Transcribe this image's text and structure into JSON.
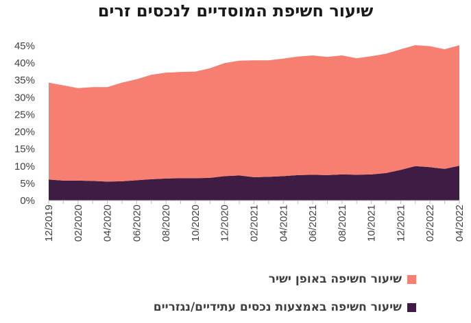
{
  "chart_data": {
    "type": "area",
    "stacked": true,
    "title": "שיעור חשיפת המוסדיים לנכסים זרים",
    "xlabel": "",
    "ylabel": "",
    "ylim": [
      0,
      0.45
    ],
    "yticks": [
      "0%",
      "5%",
      "10%",
      "15%",
      "20%",
      "25%",
      "30%",
      "35%",
      "40%",
      "45%"
    ],
    "grid": false,
    "legend_position": "bottom",
    "x": [
      "12/2019",
      "01/2020",
      "02/2020",
      "03/2020",
      "04/2020",
      "05/2020",
      "06/2020",
      "07/2020",
      "08/2020",
      "09/2020",
      "10/2020",
      "11/2020",
      "12/2020",
      "01/2021",
      "02/2021",
      "03/2021",
      "04/2021",
      "05/2021",
      "06/2021",
      "07/2021",
      "08/2021",
      "09/2021",
      "10/2021",
      "11/2021",
      "12/2021",
      "01/2022",
      "02/2022",
      "03/2022",
      "04/2022"
    ],
    "xtick_labels": [
      "12/2019",
      "02/2020",
      "04/2020",
      "06/2020",
      "08/2020",
      "10/2020",
      "12/2020",
      "02/2021",
      "04/2021",
      "06/2021",
      "08/2021",
      "10/2021",
      "12/2021",
      "02/2022",
      "04/2022"
    ],
    "total_exposure": [
      0.343,
      0.335,
      0.327,
      0.33,
      0.33,
      0.343,
      0.353,
      0.366,
      0.372,
      0.374,
      0.375,
      0.385,
      0.4,
      0.407,
      0.408,
      0.408,
      0.413,
      0.419,
      0.422,
      0.418,
      0.422,
      0.414,
      0.42,
      0.427,
      0.44,
      0.452,
      0.449,
      0.44,
      0.452
    ],
    "series": [
      {
        "name": "שיעור חשיפה באמצעות נכסים עתידיים/נגזריים",
        "color": "#3e1c44",
        "values": [
          0.061,
          0.058,
          0.058,
          0.057,
          0.055,
          0.056,
          0.059,
          0.062,
          0.064,
          0.065,
          0.065,
          0.066,
          0.071,
          0.073,
          0.068,
          0.069,
          0.071,
          0.074,
          0.075,
          0.074,
          0.076,
          0.075,
          0.076,
          0.08,
          0.089,
          0.1,
          0.097,
          0.092,
          0.101
        ]
      },
      {
        "name": "שיעור חשיפה באופן ישיר",
        "color": "#f77f71",
        "values": [
          0.282,
          0.277,
          0.269,
          0.273,
          0.275,
          0.287,
          0.294,
          0.304,
          0.308,
          0.309,
          0.31,
          0.319,
          0.329,
          0.334,
          0.34,
          0.339,
          0.342,
          0.345,
          0.347,
          0.344,
          0.346,
          0.339,
          0.344,
          0.347,
          0.351,
          0.352,
          0.352,
          0.348,
          0.351
        ]
      }
    ]
  }
}
